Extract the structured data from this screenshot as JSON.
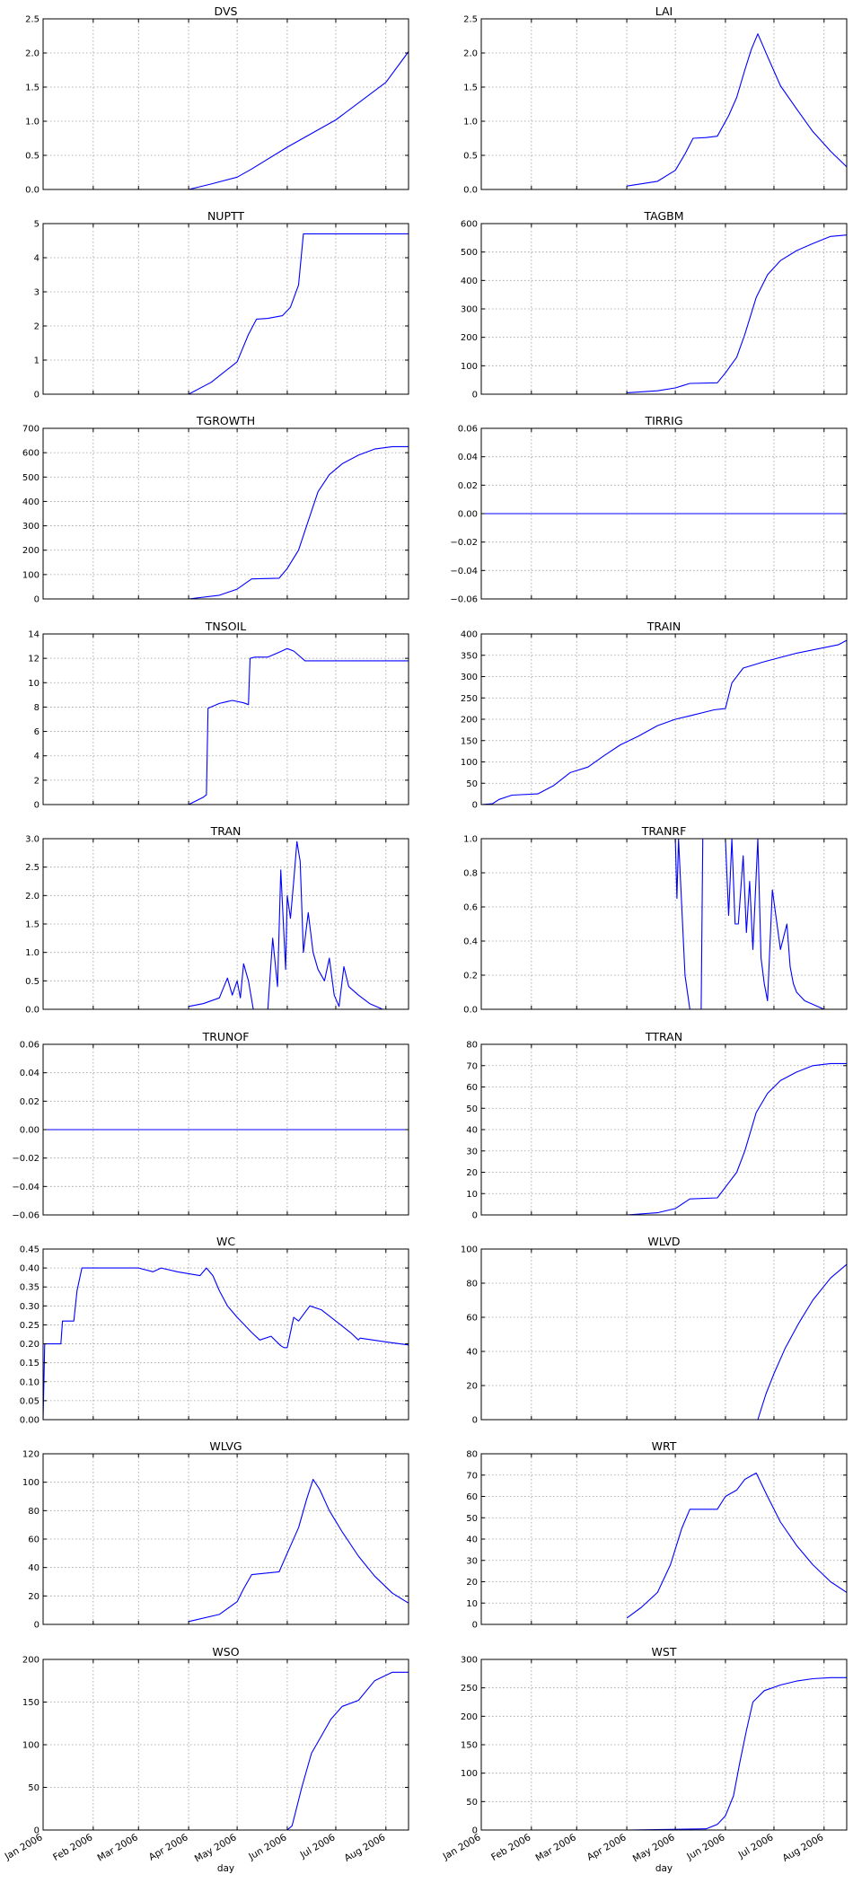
{
  "figure": {
    "xlabel": "day",
    "line_color": "#0000ff",
    "x_ticks": [
      "Jan 2006",
      "Feb 2006",
      "Mar 2006",
      "Apr 2006",
      "May 2006",
      "Jun 2006",
      "Jul 2006",
      "Aug 2006"
    ]
  },
  "chart_data": [
    {
      "title": "DVS",
      "type": "line",
      "ylim": [
        0,
        2.5
      ],
      "yticks": [
        "0.0",
        "0.5",
        "1.0",
        "1.5",
        "2.0",
        "2.5"
      ],
      "grid": true,
      "x": [
        "2006-04-01",
        "2006-04-15",
        "2006-05-01",
        "2006-05-10",
        "2006-06-01",
        "2006-07-01",
        "2006-08-01",
        "2006-08-15"
      ],
      "series": [
        {
          "values": [
            0.0,
            0.08,
            0.18,
            0.3,
            0.62,
            1.02,
            1.57,
            2.02
          ]
        }
      ]
    },
    {
      "title": "LAI",
      "type": "line",
      "ylim": [
        0,
        2.5
      ],
      "yticks": [
        "0.0",
        "0.5",
        "1.0",
        "1.5",
        "2.0",
        "2.5"
      ],
      "grid": true,
      "x": [
        "2006-04-01",
        "2006-04-20",
        "2006-05-01",
        "2006-05-07",
        "2006-05-12",
        "2006-05-20",
        "2006-05-27",
        "2006-06-03",
        "2006-06-08",
        "2006-06-13",
        "2006-06-17",
        "2006-06-21",
        "2006-06-27",
        "2006-07-05",
        "2006-07-15",
        "2006-07-25",
        "2006-08-05",
        "2006-08-15"
      ],
      "series": [
        {
          "values": [
            0.05,
            0.12,
            0.28,
            0.52,
            0.75,
            0.76,
            0.78,
            1.08,
            1.35,
            1.75,
            2.05,
            2.28,
            1.95,
            1.52,
            1.18,
            0.85,
            0.56,
            0.33
          ]
        }
      ]
    },
    {
      "title": "NUPTT",
      "type": "line",
      "ylim": [
        0,
        5
      ],
      "yticks": [
        "0",
        "1",
        "2",
        "3",
        "4",
        "5"
      ],
      "grid": true,
      "x": [
        "2006-04-01",
        "2006-04-15",
        "2006-05-01",
        "2006-05-08",
        "2006-05-13",
        "2006-05-20",
        "2006-05-29",
        "2006-06-03",
        "2006-06-08",
        "2006-06-11",
        "2006-08-15"
      ],
      "series": [
        {
          "values": [
            0.0,
            0.35,
            0.95,
            1.75,
            2.2,
            2.22,
            2.3,
            2.55,
            3.2,
            4.7,
            4.7
          ]
        }
      ]
    },
    {
      "title": "TAGBM",
      "type": "line",
      "ylim": [
        0,
        600
      ],
      "yticks": [
        "0",
        "100",
        "200",
        "300",
        "400",
        "500",
        "600"
      ],
      "grid": true,
      "x": [
        "2006-04-01",
        "2006-04-20",
        "2006-05-01",
        "2006-05-10",
        "2006-05-27",
        "2006-06-01",
        "2006-06-08",
        "2006-06-13",
        "2006-06-20",
        "2006-06-27",
        "2006-07-05",
        "2006-07-15",
        "2006-07-25",
        "2006-08-05",
        "2006-08-15"
      ],
      "series": [
        {
          "values": [
            5,
            12,
            22,
            38,
            40,
            75,
            130,
            210,
            340,
            420,
            470,
            505,
            530,
            555,
            560
          ]
        }
      ]
    },
    {
      "title": "TGROWTH",
      "type": "line",
      "ylim": [
        0,
        700
      ],
      "yticks": [
        "0",
        "100",
        "200",
        "300",
        "400",
        "500",
        "600",
        "700"
      ],
      "grid": true,
      "x": [
        "2006-04-01",
        "2006-04-20",
        "2006-05-01",
        "2006-05-10",
        "2006-05-27",
        "2006-06-01",
        "2006-06-08",
        "2006-06-13",
        "2006-06-20",
        "2006-06-27",
        "2006-07-05",
        "2006-07-15",
        "2006-07-25",
        "2006-08-05",
        "2006-08-15"
      ],
      "series": [
        {
          "values": [
            0,
            15,
            40,
            82,
            85,
            125,
            200,
            300,
            440,
            510,
            555,
            590,
            615,
            625,
            625
          ]
        }
      ]
    },
    {
      "title": "TIRRIG",
      "type": "line",
      "ylim": [
        -0.06,
        0.06
      ],
      "yticks": [
        "−0.06",
        "−0.04",
        "−0.02",
        "0.00",
        "0.02",
        "0.04",
        "0.06"
      ],
      "grid": true,
      "x": [
        "2006-01-01",
        "2006-08-15"
      ],
      "series": [
        {
          "values": [
            0.0,
            0.0
          ]
        }
      ]
    },
    {
      "title": "TNSOIL",
      "type": "line",
      "ylim": [
        0,
        14
      ],
      "yticks": [
        "0",
        "2",
        "4",
        "6",
        "8",
        "10",
        "12",
        "14"
      ],
      "grid": true,
      "x": [
        "2006-04-01",
        "2006-04-10",
        "2006-04-12",
        "2006-04-13",
        "2006-04-20",
        "2006-04-28",
        "2006-05-05",
        "2006-05-08",
        "2006-05-09",
        "2006-05-12",
        "2006-05-20",
        "2006-05-27",
        "2006-06-01",
        "2006-06-05",
        "2006-06-12",
        "2006-08-15"
      ],
      "series": [
        {
          "values": [
            0.0,
            0.6,
            0.8,
            7.9,
            8.3,
            8.55,
            8.35,
            8.2,
            12.0,
            12.1,
            12.1,
            12.5,
            12.8,
            12.6,
            11.8,
            11.8
          ]
        }
      ]
    },
    {
      "title": "TRAIN",
      "type": "line",
      "ylim": [
        0,
        400
      ],
      "yticks": [
        "0",
        "50",
        "100",
        "150",
        "200",
        "250",
        "300",
        "350",
        "400"
      ],
      "grid": true,
      "x": [
        "2006-01-01",
        "2006-01-08",
        "2006-01-12",
        "2006-01-20",
        "2006-02-05",
        "2006-02-15",
        "2006-02-25",
        "2006-03-08",
        "2006-03-18",
        "2006-03-28",
        "2006-04-08",
        "2006-04-20",
        "2006-05-01",
        "2006-05-10",
        "2006-05-25",
        "2006-06-01",
        "2006-06-05",
        "2006-06-12",
        "2006-06-25",
        "2006-07-05",
        "2006-07-15",
        "2006-08-10",
        "2006-08-15"
      ],
      "series": [
        {
          "values": [
            0,
            2,
            12,
            22,
            25,
            45,
            75,
            88,
            115,
            140,
            160,
            185,
            200,
            208,
            222,
            225,
            285,
            320,
            335,
            345,
            355,
            375,
            385
          ]
        }
      ]
    },
    {
      "title": "TRAN",
      "type": "line",
      "ylim": [
        0,
        3
      ],
      "yticks": [
        "0.0",
        "0.5",
        "1.0",
        "1.5",
        "2.0",
        "2.5",
        "3.0"
      ],
      "grid": true,
      "x": [
        "2006-04-01",
        "2006-04-10",
        "2006-04-20",
        "2006-04-25",
        "2006-04-28",
        "2006-05-01",
        "2006-05-03",
        "2006-05-05",
        "2006-05-08",
        "2006-05-11",
        "2006-05-20",
        "2006-05-23",
        "2006-05-26",
        "2006-05-28",
        "2006-05-31",
        "2006-06-01",
        "2006-06-03",
        "2006-06-05",
        "2006-06-07",
        "2006-06-09",
        "2006-06-11",
        "2006-06-14",
        "2006-06-17",
        "2006-06-20",
        "2006-06-24",
        "2006-06-27",
        "2006-06-30",
        "2006-07-03",
        "2006-07-06",
        "2006-07-09",
        "2006-07-15",
        "2006-07-22",
        "2006-07-30",
        "2006-08-05",
        "2006-08-10",
        "2006-08-15"
      ],
      "series": [
        {
          "values": [
            0.05,
            0.1,
            0.2,
            0.55,
            0.25,
            0.5,
            0.2,
            0.8,
            0.5,
            0.0,
            0.0,
            1.25,
            0.4,
            2.45,
            0.7,
            2.0,
            1.6,
            2.25,
            2.95,
            2.6,
            1.0,
            1.7,
            1.0,
            0.7,
            0.5,
            0.9,
            0.25,
            0.05,
            0.75,
            0.4,
            0.25,
            0.1,
            0.0,
            0.0,
            0.0,
            0.0
          ]
        }
      ]
    },
    {
      "title": "TRANRF",
      "type": "line",
      "ylim": [
        0,
        1
      ],
      "yticks": [
        "0.0",
        "0.2",
        "0.4",
        "0.6",
        "0.8",
        "1.0"
      ],
      "grid": true,
      "x": [
        "2006-05-01",
        "2006-05-02",
        "2006-05-03",
        "2006-05-04",
        "2006-05-07",
        "2006-05-10",
        "2006-05-13",
        "2006-05-17",
        "2006-05-18",
        "2006-06-01",
        "2006-06-03",
        "2006-06-05",
        "2006-06-07",
        "2006-06-09",
        "2006-06-12",
        "2006-06-14",
        "2006-06-16",
        "2006-06-18",
        "2006-06-21",
        "2006-06-23",
        "2006-06-25",
        "2006-06-27",
        "2006-06-30",
        "2006-07-05",
        "2006-07-09",
        "2006-07-11",
        "2006-07-13",
        "2006-07-15",
        "2006-07-20",
        "2006-08-01",
        "2006-08-05"
      ],
      "series": [
        {
          "values": [
            1.0,
            0.65,
            1.0,
            0.8,
            0.2,
            0.0,
            0.0,
            0.0,
            1.0,
            1.0,
            0.55,
            1.0,
            0.5,
            0.5,
            0.9,
            0.45,
            0.75,
            0.35,
            1.0,
            0.3,
            0.15,
            0.05,
            0.7,
            0.35,
            0.5,
            0.25,
            0.15,
            0.1,
            0.05,
            0.0,
            0.0
          ]
        }
      ]
    },
    {
      "title": "TRUNOF",
      "type": "line",
      "ylim": [
        -0.06,
        0.06
      ],
      "yticks": [
        "−0.06",
        "−0.04",
        "−0.02",
        "0.00",
        "0.02",
        "0.04",
        "0.06"
      ],
      "grid": true,
      "x": [
        "2006-01-01",
        "2006-08-15"
      ],
      "series": [
        {
          "values": [
            0.0,
            0.0
          ]
        }
      ]
    },
    {
      "title": "TTRAN",
      "type": "line",
      "ylim": [
        0,
        80
      ],
      "yticks": [
        "0",
        "10",
        "20",
        "30",
        "40",
        "50",
        "60",
        "70",
        "80"
      ],
      "grid": true,
      "x": [
        "2006-01-01",
        "2006-04-01",
        "2006-04-20",
        "2006-05-01",
        "2006-05-10",
        "2006-05-27",
        "2006-06-01",
        "2006-06-08",
        "2006-06-13",
        "2006-06-20",
        "2006-06-27",
        "2006-07-05",
        "2006-07-15",
        "2006-07-25",
        "2006-08-05",
        "2006-08-15"
      ],
      "series": [
        {
          "values": [
            0,
            0,
            1,
            3,
            7.5,
            8,
            13,
            20,
            30,
            48,
            57,
            63,
            67,
            70,
            71,
            71
          ]
        }
      ]
    },
    {
      "title": "WC",
      "type": "line",
      "ylim": [
        0,
        0.45
      ],
      "yticks": [
        "0.00",
        "0.05",
        "0.10",
        "0.15",
        "0.20",
        "0.25",
        "0.30",
        "0.35",
        "0.40",
        "0.45"
      ],
      "grid": true,
      "x": [
        "2006-01-01",
        "2006-01-02",
        "2006-01-12",
        "2006-01-13",
        "2006-01-20",
        "2006-01-22",
        "2006-01-25",
        "2006-02-15",
        "2006-03-01",
        "2006-03-10",
        "2006-03-15",
        "2006-03-25",
        "2006-04-08",
        "2006-04-12",
        "2006-04-16",
        "2006-04-20",
        "2006-04-25",
        "2006-05-01",
        "2006-05-10",
        "2006-05-15",
        "2006-05-22",
        "2006-05-28",
        "2006-05-30",
        "2006-06-01",
        "2006-06-05",
        "2006-06-08",
        "2006-06-15",
        "2006-06-22",
        "2006-07-01",
        "2006-07-10",
        "2006-07-15",
        "2006-07-16",
        "2006-08-01",
        "2006-08-15"
      ],
      "series": [
        {
          "values": [
            0.0,
            0.2,
            0.2,
            0.26,
            0.26,
            0.34,
            0.4,
            0.4,
            0.4,
            0.39,
            0.4,
            0.39,
            0.38,
            0.4,
            0.38,
            0.34,
            0.3,
            0.27,
            0.23,
            0.21,
            0.22,
            0.195,
            0.19,
            0.19,
            0.27,
            0.26,
            0.3,
            0.29,
            0.26,
            0.23,
            0.21,
            0.215,
            0.205,
            0.197
          ]
        }
      ]
    },
    {
      "title": "WLVD",
      "type": "line",
      "ylim": [
        0,
        100
      ],
      "yticks": [
        "0",
        "20",
        "40",
        "60",
        "80",
        "100"
      ],
      "grid": true,
      "x": [
        "2006-06-21",
        "2006-06-26",
        "2006-07-01",
        "2006-07-08",
        "2006-07-16",
        "2006-07-25",
        "2006-08-05",
        "2006-08-15"
      ],
      "series": [
        {
          "values": [
            0,
            15,
            27,
            42,
            56,
            70,
            83,
            91
          ]
        }
      ]
    },
    {
      "title": "WLVG",
      "type": "line",
      "ylim": [
        0,
        120
      ],
      "yticks": [
        "0",
        "20",
        "40",
        "60",
        "80",
        "100",
        "120"
      ],
      "grid": true,
      "x": [
        "2006-04-01",
        "2006-04-20",
        "2006-05-01",
        "2006-05-05",
        "2006-05-10",
        "2006-05-27",
        "2006-06-01",
        "2006-06-08",
        "2006-06-13",
        "2006-06-17",
        "2006-06-21",
        "2006-06-27",
        "2006-07-05",
        "2006-07-15",
        "2006-07-25",
        "2006-08-05",
        "2006-08-15"
      ],
      "series": [
        {
          "values": [
            2,
            7,
            16,
            25,
            35,
            37,
            50,
            68,
            88,
            102,
            95,
            80,
            65,
            48,
            34,
            22,
            15
          ]
        }
      ]
    },
    {
      "title": "WRT",
      "type": "line",
      "ylim": [
        0,
        80
      ],
      "yticks": [
        "0",
        "10",
        "20",
        "30",
        "40",
        "50",
        "60",
        "70",
        "80"
      ],
      "grid": true,
      "x": [
        "2006-04-01",
        "2006-04-10",
        "2006-04-20",
        "2006-04-28",
        "2006-05-05",
        "2006-05-10",
        "2006-05-27",
        "2006-06-01",
        "2006-06-08",
        "2006-06-13",
        "2006-06-20",
        "2006-06-27",
        "2006-07-05",
        "2006-07-15",
        "2006-07-25",
        "2006-08-05",
        "2006-08-15"
      ],
      "series": [
        {
          "values": [
            3,
            8,
            15,
            28,
            45,
            54,
            54,
            60,
            63,
            68,
            71,
            60,
            48,
            37,
            28,
            20,
            15
          ]
        }
      ]
    },
    {
      "title": "WSO",
      "type": "line",
      "ylim": [
        0,
        200
      ],
      "yticks": [
        "0",
        "50",
        "100",
        "150",
        "200"
      ],
      "grid": true,
      "x": [
        "2006-04-01",
        "2006-06-01",
        "2006-06-04",
        "2006-06-10",
        "2006-06-16",
        "2006-06-22",
        "2006-06-28",
        "2006-07-05",
        "2006-07-15",
        "2006-07-25",
        "2006-08-05",
        "2006-08-15"
      ],
      "series": [
        {
          "values": [
            0,
            0,
            5,
            50,
            90,
            110,
            130,
            145,
            152,
            175,
            185,
            185
          ]
        }
      ]
    },
    {
      "title": "WST",
      "type": "line",
      "ylim": [
        0,
        300
      ],
      "yticks": [
        "0",
        "50",
        "100",
        "150",
        "200",
        "250",
        "300"
      ],
      "grid": true,
      "x": [
        "2006-04-01",
        "2006-05-20",
        "2006-05-27",
        "2006-06-01",
        "2006-06-06",
        "2006-06-10",
        "2006-06-14",
        "2006-06-18",
        "2006-06-25",
        "2006-07-05",
        "2006-07-15",
        "2006-07-25",
        "2006-08-05",
        "2006-08-15"
      ],
      "series": [
        {
          "values": [
            0,
            2,
            10,
            25,
            60,
            120,
            175,
            225,
            245,
            255,
            262,
            266,
            268,
            268
          ]
        }
      ]
    }
  ]
}
